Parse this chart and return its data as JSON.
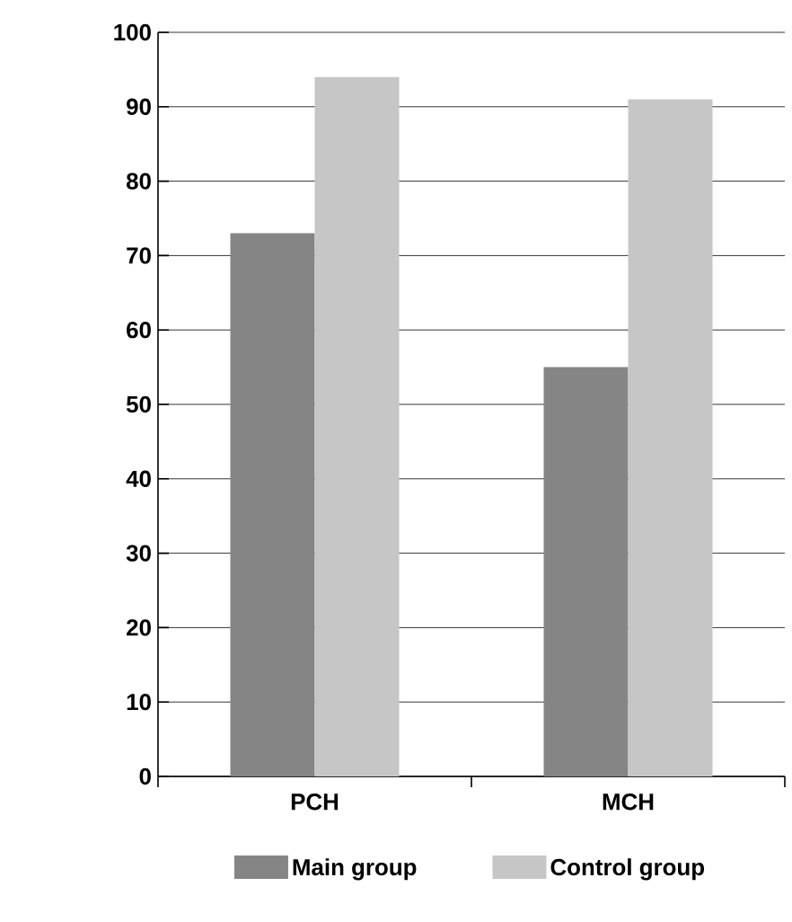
{
  "chart_data": {
    "type": "bar",
    "categories": [
      "PCH",
      "MCH"
    ],
    "series": [
      {
        "name": "Main group",
        "color": "#858585",
        "values": [
          73,
          55
        ]
      },
      {
        "name": "Control group",
        "color": "#c6c6c6",
        "values": [
          94,
          91
        ]
      }
    ],
    "ylim": [
      0,
      100
    ],
    "yticks": [
      0,
      10,
      20,
      30,
      40,
      50,
      60,
      70,
      80,
      90,
      100
    ],
    "grid": "y",
    "legend": "bottom"
  }
}
